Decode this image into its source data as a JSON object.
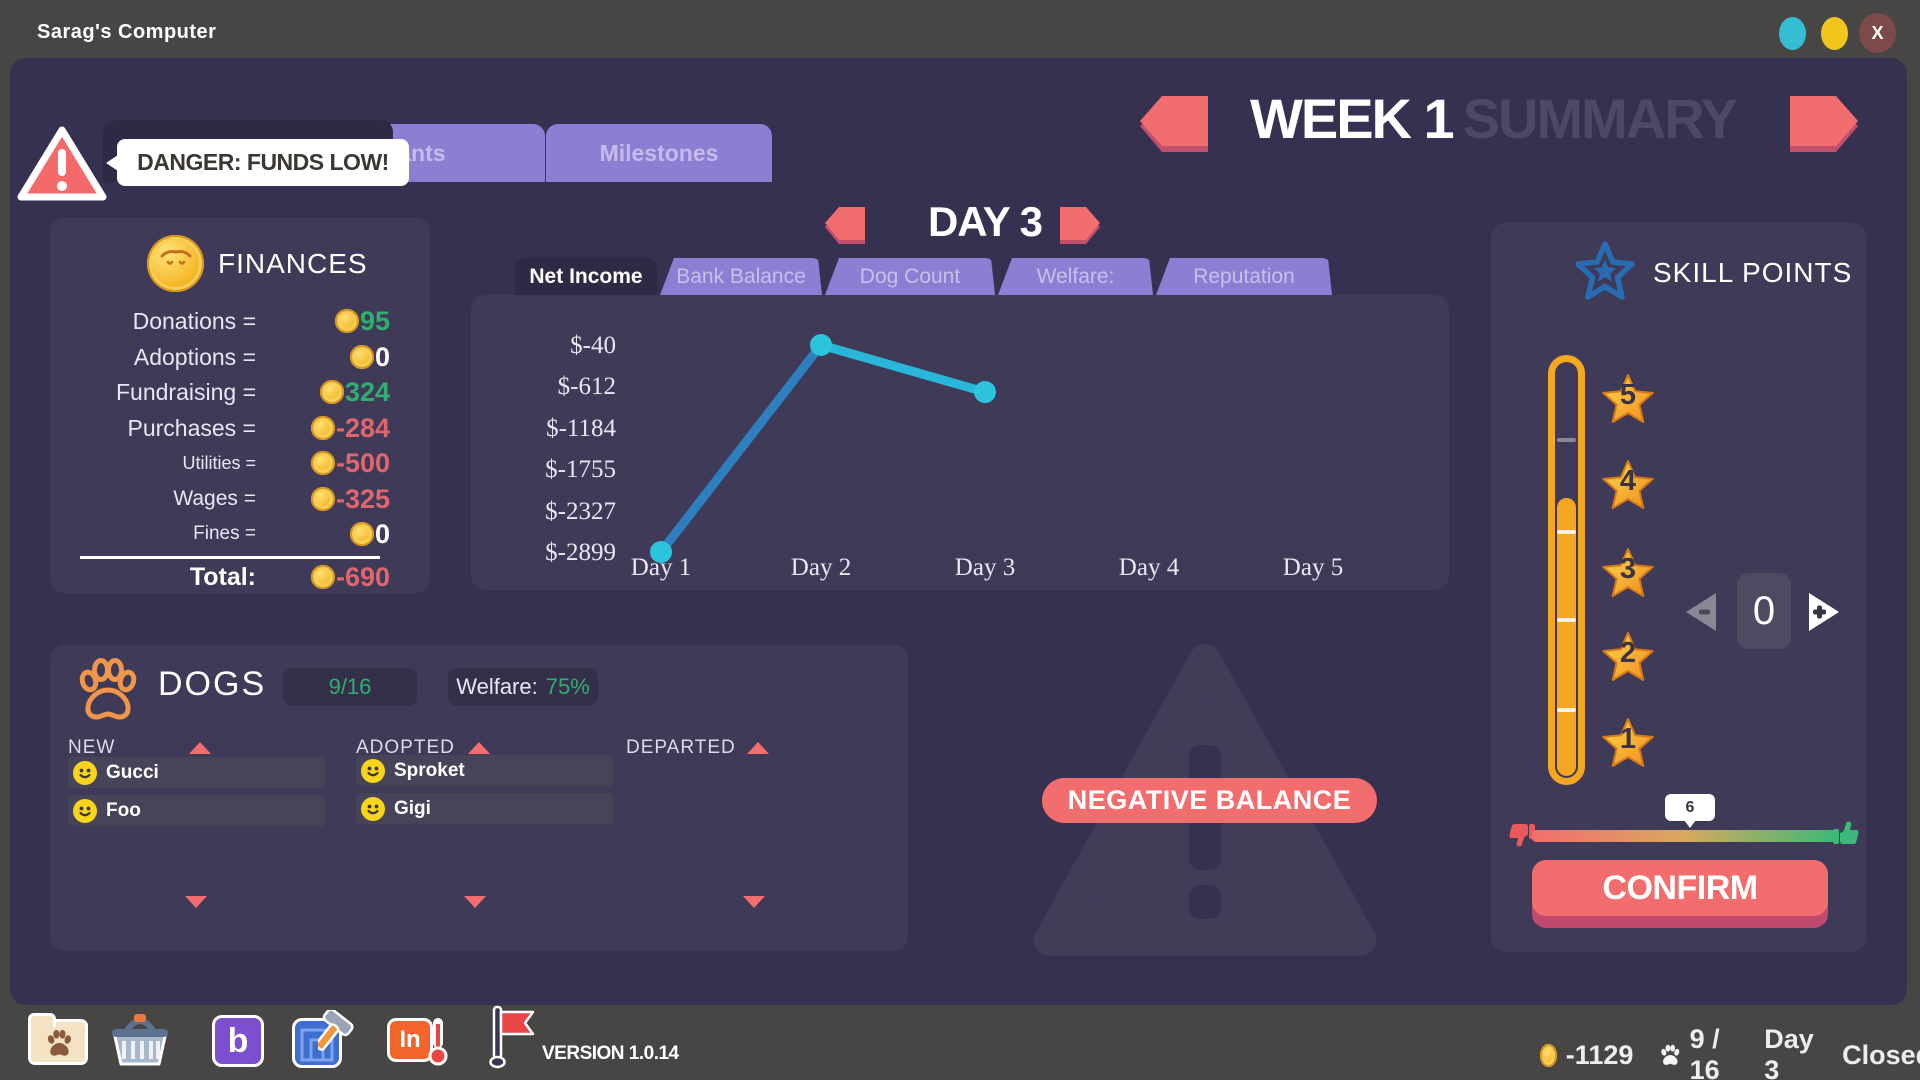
{
  "window": {
    "title": "Sarag's Computer",
    "close_label": "X"
  },
  "week_header": {
    "week": "WEEK 1",
    "summary": "SUMMARY"
  },
  "alert_tooltip": "DANGER: FUNDS LOW!",
  "top_tabs": {
    "grants": "Grants",
    "milestones": "Milestones"
  },
  "day_nav": "DAY 3",
  "finances": {
    "title": "FINANCES",
    "rows": [
      {
        "label": "Donations =",
        "value": "95"
      },
      {
        "label": "Adoptions =",
        "value": "0"
      },
      {
        "label": "Fundraising =",
        "value": "324"
      },
      {
        "label": "Purchases =",
        "value": "-284"
      },
      {
        "label": "Utilities =",
        "value": "-500"
      },
      {
        "label": "Wages =",
        "value": "-325"
      },
      {
        "label": "Fines =",
        "value": "0"
      }
    ],
    "total_label": "Total:",
    "total_value": "-690"
  },
  "chart_tabs": {
    "active": "Net Income",
    "others": [
      "Bank Balance",
      "Dog Count",
      "Welfare:",
      "Reputation"
    ]
  },
  "chart_data": {
    "type": "line",
    "title": "Net Income",
    "x_labels": [
      "Day 1",
      "Day 2",
      "Day 3",
      "Day 4",
      "Day 5"
    ],
    "y_tick_labels": [
      "$-40",
      "$-612",
      "$-1184",
      "$-1755",
      "$-2327",
      "$-2899"
    ],
    "ylim": [
      -2899,
      -40
    ],
    "series": [
      {
        "name": "Net Income",
        "values": [
          -2899,
          -40,
          -690,
          null,
          null
        ]
      }
    ],
    "line_colors": [
      "#2e7fc0",
      "#29b6d8"
    ],
    "point_color": "#2cc4dc",
    "grid": false,
    "legend": "none"
  },
  "dogs": {
    "title": "DOGS",
    "count": "9/16",
    "welfare_label": "Welfare:",
    "welfare_value": "75%",
    "columns": [
      {
        "header": "NEW",
        "items": [
          "Gucci",
          "Foo"
        ]
      },
      {
        "header": "ADOPTED",
        "items": [
          "Sproket",
          "Gigi"
        ]
      },
      {
        "header": "DEPARTED",
        "items": []
      }
    ]
  },
  "negative_balance": "NEGATIVE BALANCE",
  "skill_panel": {
    "title": "SKILL POINTS",
    "star_labels": [
      "5",
      "4",
      "3",
      "2",
      "1"
    ],
    "stepper_value": "0",
    "slider_tooltip": "6",
    "confirm": "CONFIRM"
  },
  "taskbar": {
    "icons": [
      "dog-folder",
      "shop-basket",
      "b-app",
      "build-blueprint",
      "inspection",
      "flag"
    ],
    "version": "VERSION 1.0.14",
    "coins": "-1129",
    "dog_count": "9 / 16",
    "day": "Day 3",
    "status": "Closed"
  },
  "colors": {
    "accent_salmon": "#f26d6d",
    "positive": "#2fae70",
    "negative": "#e0666e",
    "coin_gold": "#f5c331",
    "thermo_orange": "#f5a623",
    "window_bg": "#363150"
  }
}
